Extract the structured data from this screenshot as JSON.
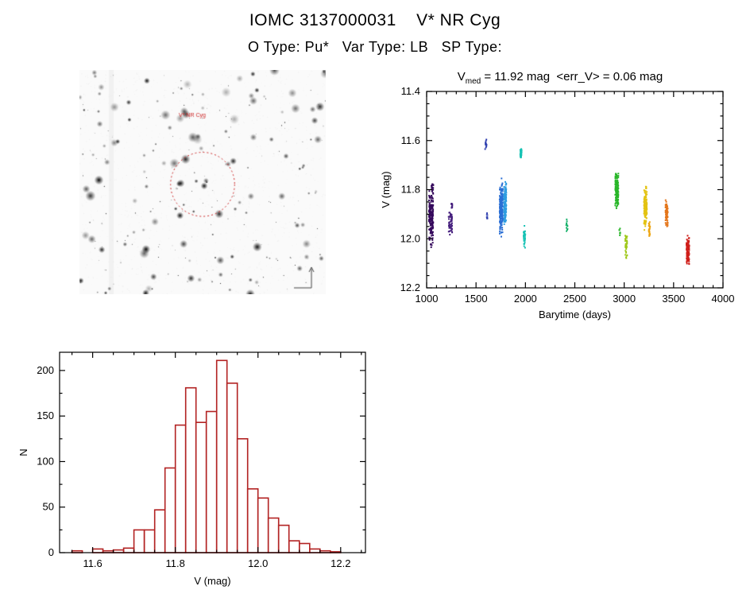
{
  "header": {
    "title": "IOMC 3137000031    V* NR Cyg",
    "subtitle": "O Type: Pu*   Var Type: LB   SP Type:"
  },
  "finding_chart": {
    "label": "V* NR Cyg",
    "label_color": "#cc2222",
    "circle_color": "#cc2222",
    "star_count": 270,
    "seed": 20311
  },
  "chart_data": [
    {
      "type": "scatter",
      "name": "light-curve",
      "title_var": "V",
      "title_sub": "med",
      "title_rest": " = 11.92 mag  <err_V> = 0.06 mag",
      "xlabel": "Barytime (days)",
      "ylabel": "V (mag)",
      "xlim": [
        1000,
        4000
      ],
      "ylim": [
        11.4,
        12.2
      ],
      "y_axis_inverted": true,
      "xticks": [
        1000,
        1500,
        2000,
        2500,
        3000,
        3500,
        4000
      ],
      "xtick_labels": [
        "1000",
        "1500",
        "2000",
        "2500",
        "3000",
        "3500",
        "4000"
      ],
      "yticks": [
        11.4,
        11.6,
        11.8,
        12.0,
        12.2
      ],
      "ytick_labels": [
        "11.4",
        "11.6",
        "11.8",
        "12.0",
        "12.2"
      ],
      "x_minor": 100,
      "y_minor": 0.05,
      "clusters": [
        {
          "x": 1045,
          "xs": 22,
          "y": 11.91,
          "ys": 0.1,
          "n": 170,
          "c": "#35095c"
        },
        {
          "x": 1060,
          "xs": 8,
          "y": 11.79,
          "ys": 0.02,
          "n": 12,
          "c": "#35095c"
        },
        {
          "x": 1240,
          "xs": 18,
          "y": 11.93,
          "ys": 0.05,
          "n": 55,
          "c": "#46207e"
        },
        {
          "x": 1255,
          "xs": 6,
          "y": 11.86,
          "ys": 0.02,
          "n": 10,
          "c": "#46207e"
        },
        {
          "x": 1600,
          "xs": 8,
          "y": 11.61,
          "ys": 0.02,
          "n": 12,
          "c": "#3141b0"
        },
        {
          "x": 1615,
          "xs": 6,
          "y": 11.91,
          "ys": 0.02,
          "n": 8,
          "c": "#3141b0"
        },
        {
          "x": 1755,
          "xs": 16,
          "y": 11.88,
          "ys": 0.09,
          "n": 200,
          "c": "#2b6fd4"
        },
        {
          "x": 1795,
          "xs": 12,
          "y": 11.86,
          "ys": 0.08,
          "n": 130,
          "c": "#2f9de0"
        },
        {
          "x": 1955,
          "xs": 8,
          "y": 11.65,
          "ys": 0.018,
          "n": 28,
          "c": "#16c2b4"
        },
        {
          "x": 1990,
          "xs": 9,
          "y": 11.99,
          "ys": 0.035,
          "n": 32,
          "c": "#16c2b4"
        },
        {
          "x": 2420,
          "xs": 7,
          "y": 11.95,
          "ys": 0.03,
          "n": 12,
          "c": "#1cb36e"
        },
        {
          "x": 2925,
          "xs": 16,
          "y": 11.8,
          "ys": 0.07,
          "n": 150,
          "c": "#28b628"
        },
        {
          "x": 2955,
          "xs": 5,
          "y": 11.97,
          "ys": 0.015,
          "n": 8,
          "c": "#28b628"
        },
        {
          "x": 3020,
          "xs": 10,
          "y": 12.03,
          "ys": 0.05,
          "n": 40,
          "c": "#9fc819"
        },
        {
          "x": 3215,
          "xs": 15,
          "y": 11.87,
          "ys": 0.07,
          "n": 150,
          "c": "#e3c312"
        },
        {
          "x": 3255,
          "xs": 7,
          "y": 11.96,
          "ys": 0.03,
          "n": 25,
          "c": "#eda410"
        },
        {
          "x": 3430,
          "xs": 12,
          "y": 11.9,
          "ys": 0.045,
          "n": 65,
          "c": "#e4761b"
        },
        {
          "x": 3645,
          "xs": 14,
          "y": 12.05,
          "ys": 0.055,
          "n": 120,
          "c": "#cf1f1a"
        }
      ]
    },
    {
      "type": "histogram",
      "name": "v-magnitude-histogram",
      "xlabel": "V (mag)",
      "ylabel": "N",
      "xlim": [
        11.52,
        12.26
      ],
      "ylim": [
        0,
        220
      ],
      "xticks": [
        11.6,
        11.8,
        12.0,
        12.2
      ],
      "xtick_labels": [
        "11.6",
        "11.8",
        "12.0",
        "12.2"
      ],
      "yticks": [
        0,
        50,
        100,
        150,
        200
      ],
      "ytick_labels": [
        "0",
        "50",
        "100",
        "150",
        "200"
      ],
      "x_minor": 0.05,
      "y_minor": 25,
      "bar_color": "#b22222",
      "bin_start": 11.55,
      "bin_width": 0.025,
      "counts": [
        2,
        0,
        4,
        2,
        3,
        5,
        25,
        25,
        47,
        93,
        140,
        181,
        143,
        155,
        211,
        186,
        125,
        70,
        60,
        38,
        30,
        13,
        10,
        4,
        2,
        1
      ]
    }
  ]
}
